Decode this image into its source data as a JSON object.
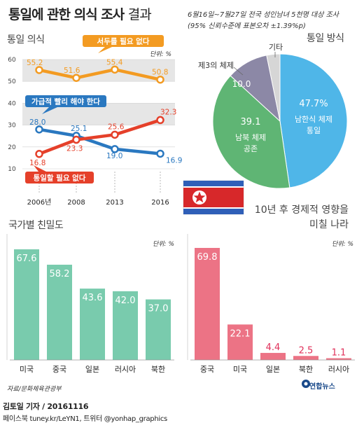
{
  "header": {
    "title_bold": "통일에 관한 의식 조사",
    "title_light": "결과",
    "survey_line1": "6월16일~7월27일 전국 성인남녀 5천명 대상 조사",
    "survey_line2": "(95% 신뢰수준에 표본오차 ±1.39%p)"
  },
  "chart_data": [
    {
      "type": "line",
      "title": "통일 의식",
      "unit": "단위: %",
      "x": [
        "2006년",
        "2008",
        "2013",
        "2016"
      ],
      "ylim": [
        10,
        60
      ],
      "yticks": [
        "10",
        "20",
        "30",
        "40",
        "50",
        "60"
      ],
      "series": [
        {
          "name": "서두를 필요 없다",
          "values": [
            55.2,
            51.6,
            55.4,
            50.8
          ],
          "labels": [
            "55.2",
            "51.6",
            "55.4",
            "50.8"
          ],
          "color": "#f39b22"
        },
        {
          "name": "가급적 빨리 해야 한다",
          "values": [
            28.0,
            25.1,
            19.0,
            16.9
          ],
          "labels": [
            "28.0",
            "25.1",
            "19.0",
            "16.9"
          ],
          "color": "#2a78c0"
        },
        {
          "name": "통일할 필요 없다",
          "values": [
            16.8,
            23.3,
            25.6,
            32.3
          ],
          "labels": [
            "16.8",
            "23.3",
            "25.6",
            "32.3"
          ],
          "color": "#e5402a"
        }
      ]
    },
    {
      "type": "pie",
      "title": "통일 방식",
      "slices": [
        {
          "label": "남한식 체제 통일",
          "line1": "남한식 체제",
          "line2": "통일",
          "value": 47.7,
          "display": "47.7%",
          "color": "#4fb6e8"
        },
        {
          "label": "남북 체제 공존",
          "line1": "남북 체제",
          "line2": "공존",
          "value": 39.1,
          "display": "39.1",
          "color": "#5fb574"
        },
        {
          "label": "제3의 체제",
          "value": 10.0,
          "display": "10.0",
          "color": "#8c88a6"
        },
        {
          "label": "기타",
          "value": 3.2,
          "display": "",
          "color": "#d6d6d6"
        }
      ]
    },
    {
      "type": "bar",
      "title": "국가별 친밀도",
      "unit": "단위: %",
      "categories": [
        "미국",
        "중국",
        "일본",
        "러시아",
        "북한"
      ],
      "values": [
        67.6,
        58.2,
        43.6,
        42.0,
        37.0
      ],
      "labels": [
        "67.6",
        "58.2",
        "43.6",
        "42.0",
        "37.0"
      ],
      "color": "#79cbad"
    },
    {
      "type": "bar",
      "title": "10년 후 경제적 영향을 미칠 나라",
      "unit": "단위: %",
      "categories": [
        "중국",
        "미국",
        "일본",
        "북한",
        "러시아"
      ],
      "values": [
        69.8,
        22.1,
        4.4,
        2.5,
        1.1
      ],
      "labels": [
        "69.8",
        "22.1",
        "4.4",
        "2.5",
        "1.1"
      ],
      "color": "#ec7385",
      "label_color": "#e0305a"
    }
  ],
  "econ_title_line1": "10년 후 경제적 영향을",
  "econ_title_line2": "미칠 나라",
  "source": "자료/문화체육관광부",
  "logo": "연합뉴스",
  "footer_line1": "김토일 기자 / 20161116",
  "footer_line2": "페이스북 tuney.kr/LeYN1, 트위터 @yonhap_graphics"
}
